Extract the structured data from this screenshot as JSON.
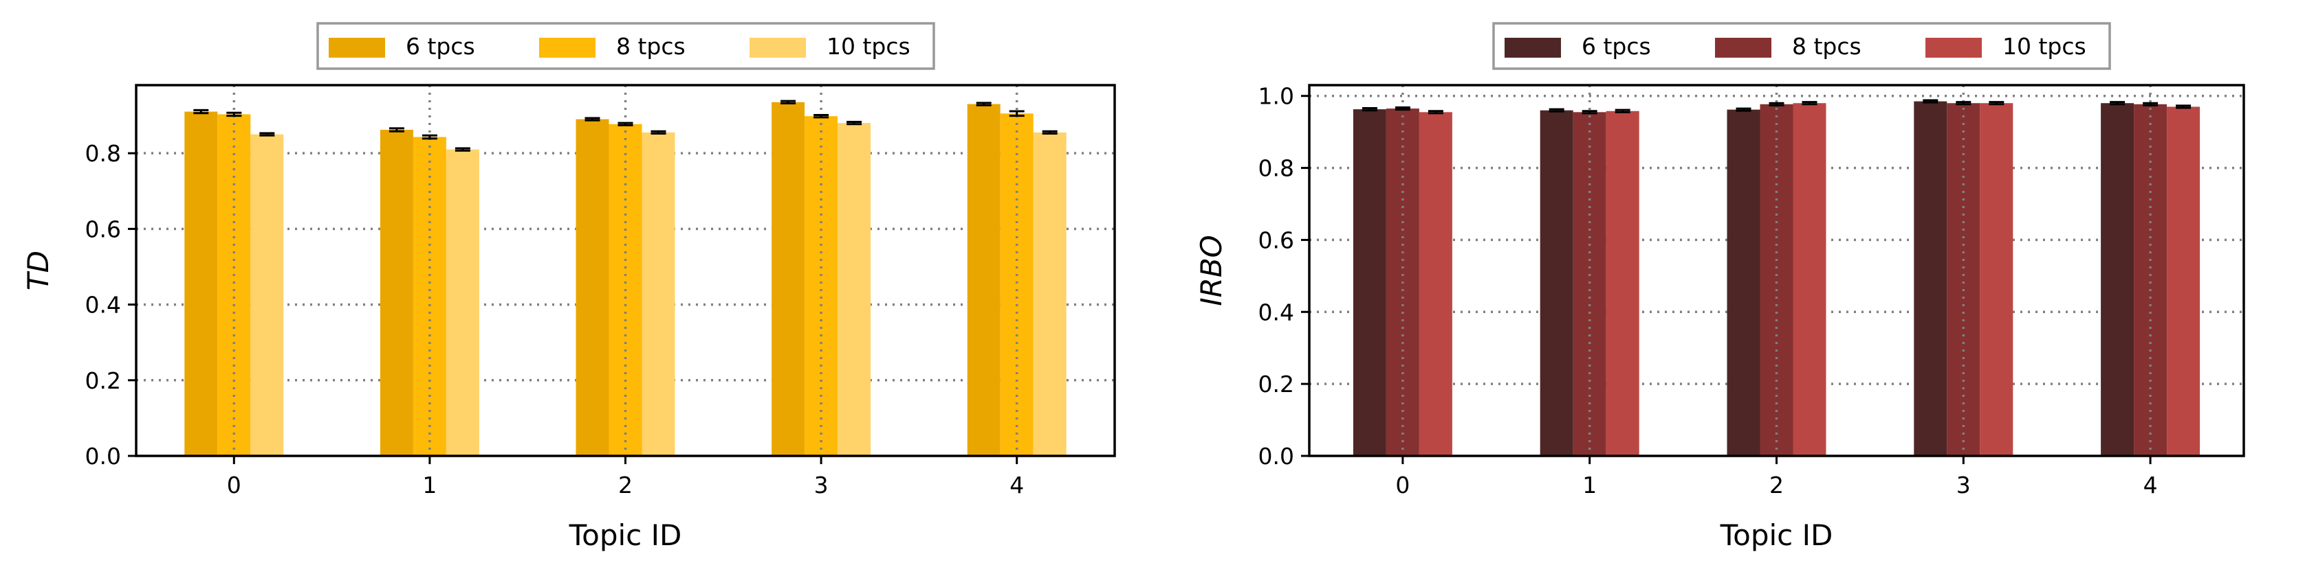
{
  "chart_data": [
    {
      "type": "bar",
      "title": "",
      "xlabel": "Topic ID",
      "ylabel": "TD",
      "categories": [
        "0",
        "1",
        "2",
        "3",
        "4"
      ],
      "ylim": [
        0,
        0.98
      ],
      "yticks": [
        "0.0",
        "0.2",
        "0.4",
        "0.6",
        "0.8"
      ],
      "grid": true,
      "legend_position": "top-center",
      "series": [
        {
          "name": "6 tpcs",
          "color": "#eaa600",
          "values": [
            0.91,
            0.862,
            0.89,
            0.935,
            0.93
          ],
          "errors": [
            0.004,
            0.004,
            0.003,
            0.003,
            0.003
          ]
        },
        {
          "name": "8 tpcs",
          "color": "#ffb907",
          "values": [
            0.903,
            0.843,
            0.877,
            0.898,
            0.905
          ],
          "errors": [
            0.004,
            0.004,
            0.003,
            0.003,
            0.006
          ]
        },
        {
          "name": "10 tpcs",
          "color": "#ffd36a",
          "values": [
            0.85,
            0.81,
            0.855,
            0.88,
            0.855
          ],
          "errors": [
            0.003,
            0.003,
            0.003,
            0.003,
            0.003
          ]
        }
      ]
    },
    {
      "type": "bar",
      "title": "",
      "xlabel": "Topic ID",
      "ylabel": "IRBO",
      "categories": [
        "0",
        "1",
        "2",
        "3",
        "4"
      ],
      "ylim": [
        0,
        1.03
      ],
      "yticks": [
        "0.0",
        "0.2",
        "0.4",
        "0.6",
        "0.8",
        "1.0"
      ],
      "grid": true,
      "legend_position": "top-center",
      "series": [
        {
          "name": "6 tpcs",
          "color": "#4e2626",
          "values": [
            0.963,
            0.96,
            0.962,
            0.985,
            0.98
          ],
          "errors": [
            0.003,
            0.003,
            0.003,
            0.003,
            0.003
          ]
        },
        {
          "name": "8 tpcs",
          "color": "#853131",
          "values": [
            0.965,
            0.955,
            0.977,
            0.98,
            0.977
          ],
          "errors": [
            0.003,
            0.003,
            0.003,
            0.003,
            0.003
          ]
        },
        {
          "name": "10 tpcs",
          "color": "#bb4744",
          "values": [
            0.955,
            0.958,
            0.98,
            0.98,
            0.97
          ],
          "errors": [
            0.003,
            0.003,
            0.003,
            0.003,
            0.003
          ]
        }
      ]
    }
  ]
}
